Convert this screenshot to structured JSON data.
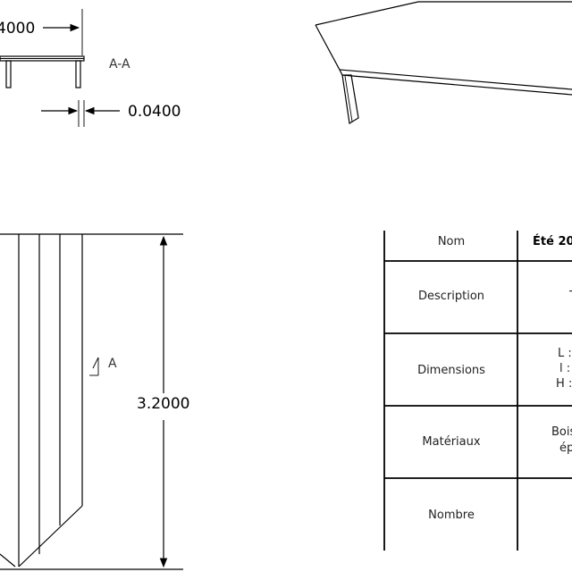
{
  "dimensions": {
    "width_partial": "4000",
    "thickness": "0.0400",
    "height": "3.2000"
  },
  "section": {
    "label": "A-A",
    "marker": "A"
  },
  "table": {
    "rows": [
      {
        "label": "Nom",
        "value_lines": [
          "Été 20"
        ],
        "value_bold": true
      },
      {
        "label": "Description",
        "value_lines": [
          "T"
        ],
        "value_bold": false
      },
      {
        "label": "Dimensions",
        "value_lines": [
          "L :",
          "l :",
          "H :"
        ],
        "value_bold": false
      },
      {
        "label": "Matériaux",
        "value_lines": [
          "Bois",
          "ép"
        ],
        "value_bold": false
      },
      {
        "label": "Nombre",
        "value_lines": [],
        "value_bold": false
      }
    ]
  }
}
